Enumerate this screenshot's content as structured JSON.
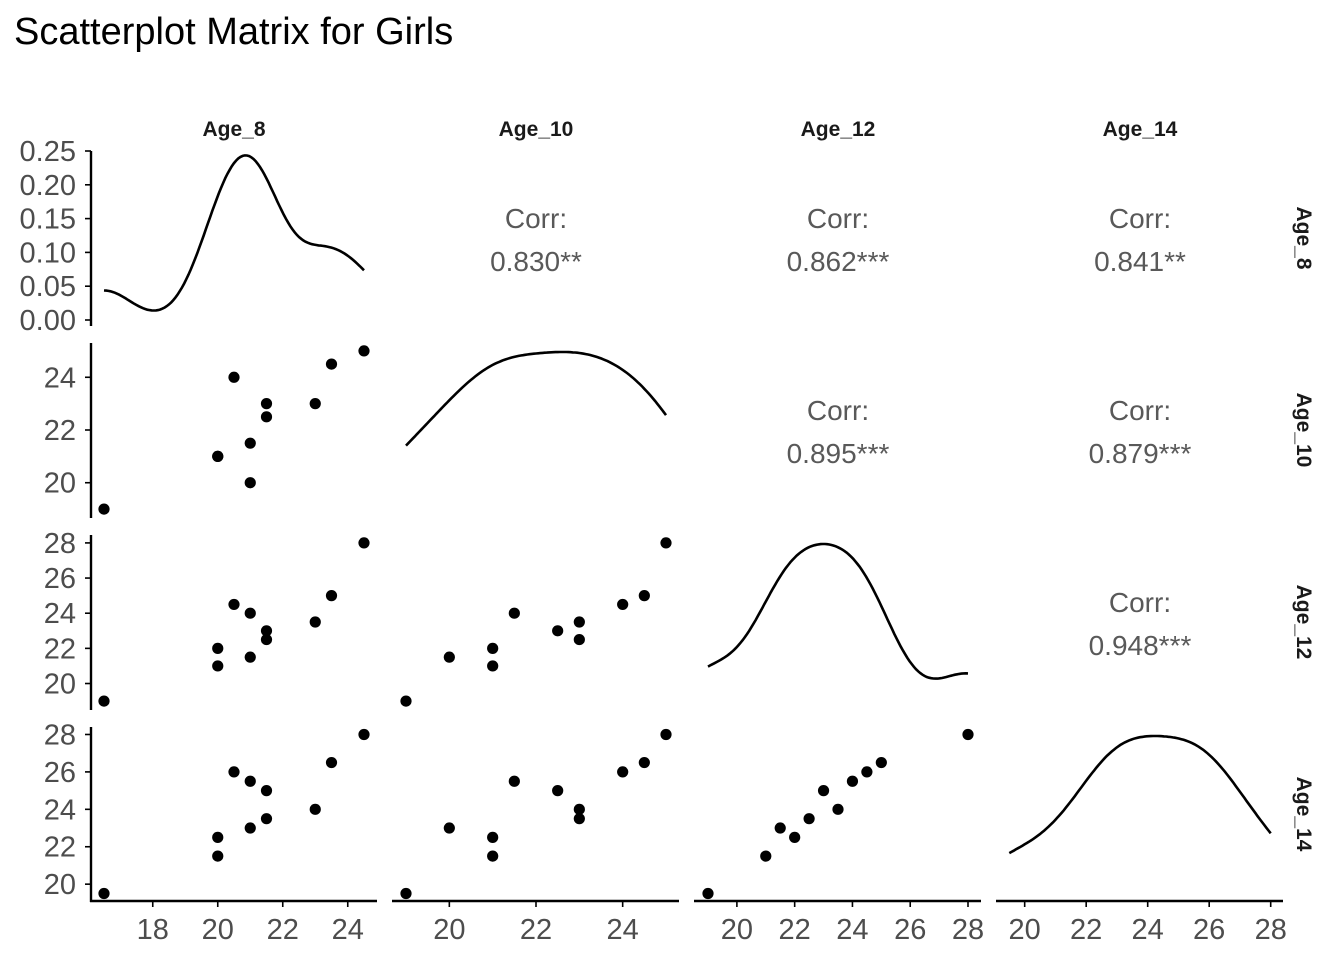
{
  "chart_data": {
    "type": "scatter",
    "title": "Scatterplot Matrix for Girls",
    "variables": [
      "Age_8",
      "Age_10",
      "Age_12",
      "Age_14"
    ],
    "observations": [
      {
        "Age_8": 16.5,
        "Age_10": 19.0,
        "Age_12": 19.0,
        "Age_14": 19.5
      },
      {
        "Age_8": 20.0,
        "Age_10": 21.0,
        "Age_12": 21.0,
        "Age_14": 21.5
      },
      {
        "Age_8": 20.0,
        "Age_10": 21.0,
        "Age_12": 22.0,
        "Age_14": 22.5
      },
      {
        "Age_8": 20.5,
        "Age_10": 24.0,
        "Age_12": 24.5,
        "Age_14": 26.0
      },
      {
        "Age_8": 21.0,
        "Age_10": 20.0,
        "Age_12": 21.5,
        "Age_14": 23.0
      },
      {
        "Age_8": 21.0,
        "Age_10": 21.5,
        "Age_12": 24.0,
        "Age_14": 25.5
      },
      {
        "Age_8": 21.5,
        "Age_10": 22.5,
        "Age_12": 23.0,
        "Age_14": 25.0
      },
      {
        "Age_8": 21.5,
        "Age_10": 23.0,
        "Age_12": 22.5,
        "Age_14": 23.5
      },
      {
        "Age_8": 23.0,
        "Age_10": 23.0,
        "Age_12": 23.5,
        "Age_14": 24.0
      },
      {
        "Age_8": 23.5,
        "Age_10": 24.5,
        "Age_12": 25.0,
        "Age_14": 26.5
      },
      {
        "Age_8": 24.5,
        "Age_10": 25.0,
        "Age_12": 28.0,
        "Age_14": 28.0
      }
    ],
    "correlations": [
      {
        "row": "Age_8",
        "col": "Age_10",
        "label": "Corr:",
        "value": "0.830**"
      },
      {
        "row": "Age_8",
        "col": "Age_12",
        "label": "Corr:",
        "value": "0.862***"
      },
      {
        "row": "Age_8",
        "col": "Age_14",
        "label": "Corr:",
        "value": "0.841**"
      },
      {
        "row": "Age_10",
        "col": "Age_12",
        "label": "Corr:",
        "value": "0.895***"
      },
      {
        "row": "Age_10",
        "col": "Age_14",
        "label": "Corr:",
        "value": "0.879***"
      },
      {
        "row": "Age_12",
        "col": "Age_14",
        "label": "Corr:",
        "value": "0.948***"
      }
    ],
    "diagonal_type": "density",
    "density_ylim": [
      0,
      0.25
    ],
    "density_yticks": [
      "0.00",
      "0.05",
      "0.10",
      "0.15",
      "0.20",
      "0.25"
    ],
    "x_ticks": {
      "Age_8": [
        "18",
        "20",
        "22",
        "24"
      ],
      "Age_10": [
        "20",
        "22",
        "24"
      ],
      "Age_12": [
        "20",
        "22",
        "24",
        "26",
        "28"
      ],
      "Age_14": [
        "20",
        "22",
        "24",
        "26",
        "28"
      ]
    },
    "y_ticks": {
      "Age_10": [
        "20",
        "22",
        "24"
      ],
      "Age_12": [
        "20",
        "22",
        "24",
        "26",
        "28"
      ],
      "Age_14": [
        "20",
        "22",
        "24",
        "26",
        "28"
      ]
    },
    "xlim": {
      "Age_8": [
        16.1,
        24.9
      ],
      "Age_10": [
        18.7,
        25.3
      ],
      "Age_12": [
        18.55,
        28.45
      ],
      "Age_14": [
        19.1,
        28.4
      ]
    },
    "ylim": {
      "Age_10": [
        18.7,
        25.3
      ],
      "Age_12": [
        18.55,
        28.45
      ],
      "Age_14": [
        19.1,
        28.4
      ]
    },
    "grid": false,
    "legend": "none"
  }
}
